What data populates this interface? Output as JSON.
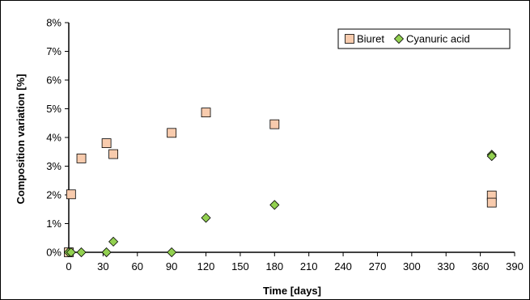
{
  "chart_data": {
    "type": "scatter",
    "xlabel": "Time [days]",
    "ylabel": "Composition variation [%]",
    "xlim": [
      0,
      390
    ],
    "ylim": [
      0,
      8
    ],
    "xticks": [
      0,
      30,
      60,
      90,
      120,
      150,
      180,
      210,
      240,
      270,
      300,
      330,
      360,
      390
    ],
    "yticks": [
      0,
      1,
      2,
      3,
      4,
      5,
      6,
      7,
      8
    ],
    "ytick_labels": [
      "0%",
      "1%",
      "2%",
      "3%",
      "4%",
      "5%",
      "6%",
      "7%",
      "8%"
    ],
    "grid": false,
    "legend_position": "top-right",
    "series": [
      {
        "name": "Biuret",
        "marker": "square",
        "color": "#F8CBAD",
        "x": [
          0,
          2,
          11,
          33,
          39,
          90,
          120,
          180,
          370,
          370
        ],
        "y": [
          0.0,
          2.02,
          3.27,
          3.8,
          3.42,
          4.16,
          4.87,
          4.46,
          1.98,
          1.73
        ]
      },
      {
        "name": "Cyanuric acid",
        "marker": "diamond",
        "color": "#92D050",
        "x": [
          0,
          2,
          11,
          33,
          39,
          90,
          120,
          180,
          370,
          370
        ],
        "y": [
          0.0,
          0.0,
          0.0,
          0.0,
          0.37,
          0.0,
          1.2,
          1.65,
          3.4,
          3.35
        ]
      }
    ]
  }
}
